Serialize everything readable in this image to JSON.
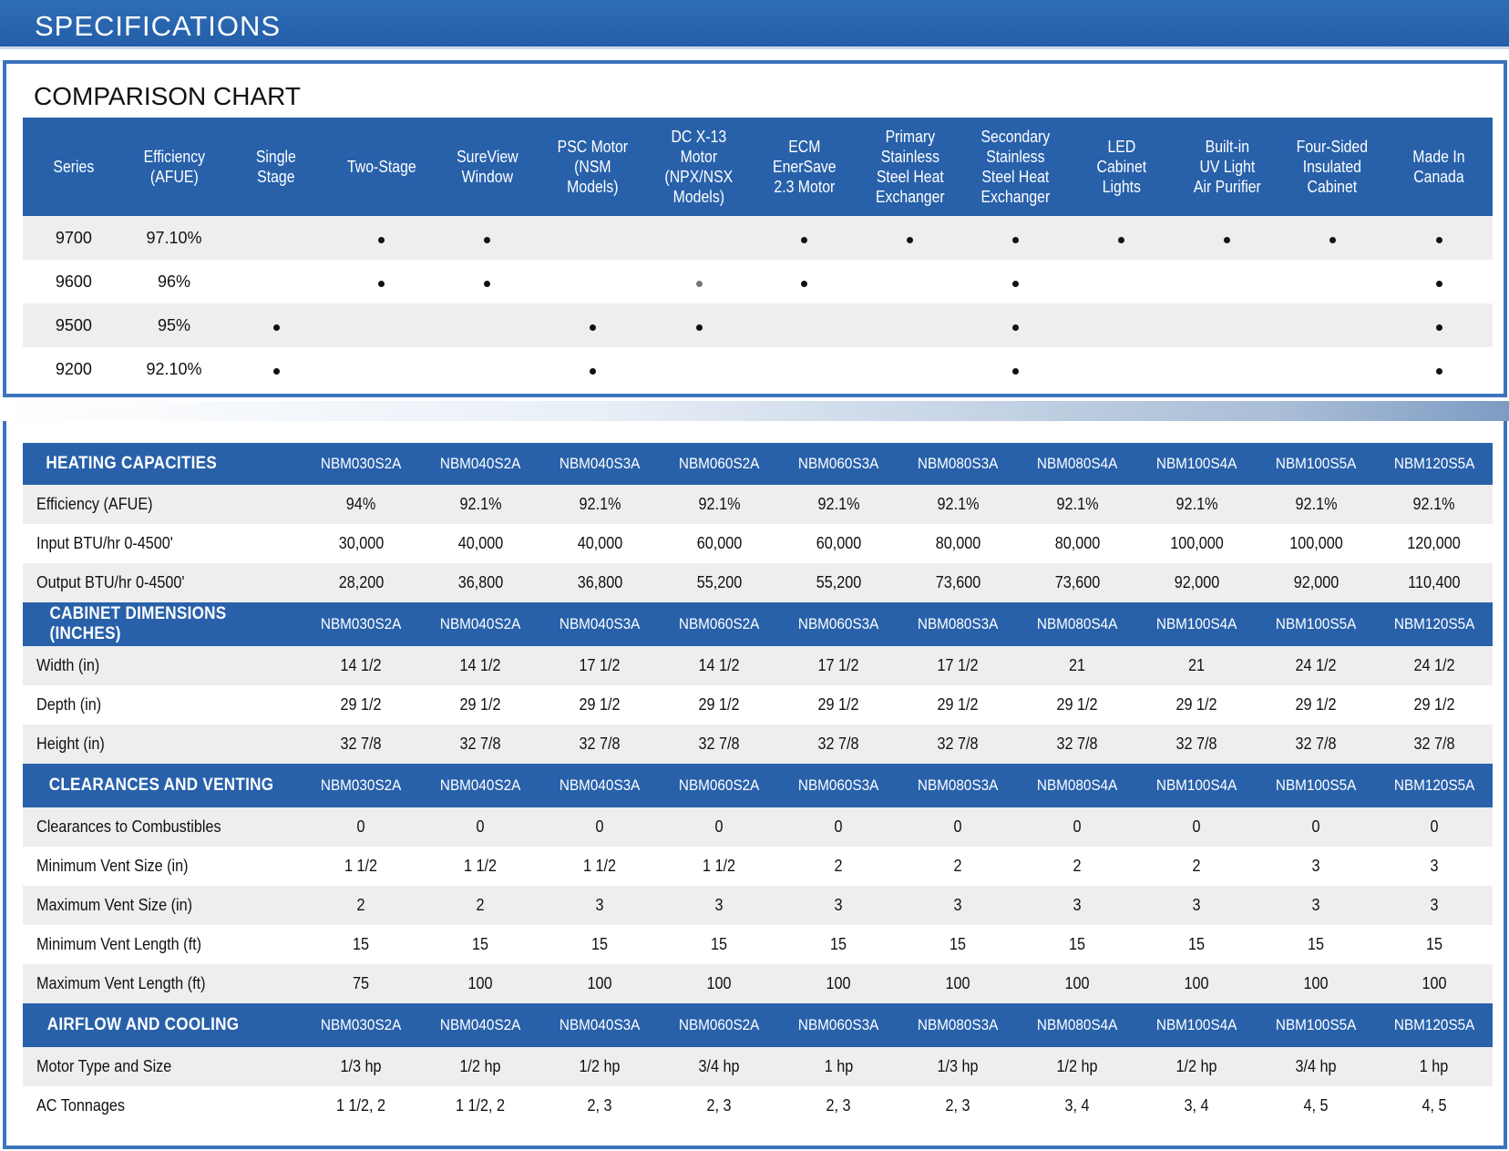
{
  "banner": {
    "title": "SPECIFICATIONS"
  },
  "comparison": {
    "heading": "COMPARISON CHART",
    "columns": [
      [
        "Series"
      ],
      [
        "Efficiency",
        "(AFUE)"
      ],
      [
        "Single",
        "Stage"
      ],
      [
        "Two-Stage"
      ],
      [
        "SureView",
        "Window"
      ],
      [
        "PSC Motor",
        "(NSM Models)"
      ],
      [
        "DC X-13",
        "Motor",
        "(NPX/NSX",
        "Models)"
      ],
      [
        "ECM",
        "EnerSave",
        "2.3 Motor"
      ],
      [
        "Primary",
        "Stainless",
        "Steel Heat",
        "Exchanger"
      ],
      [
        "Secondary",
        "Stainless",
        "Steel Heat",
        "Exchanger"
      ],
      [
        "LED",
        "Cabinet",
        "Lights"
      ],
      [
        "Built-in",
        "UV Light",
        "Air Purifier"
      ],
      [
        "Four-Sided",
        "Insulated",
        "Cabinet"
      ],
      [
        "Made In",
        "Canada"
      ]
    ],
    "rows": [
      {
        "series": "9700",
        "efficiency": "97.10%",
        "features": [
          0,
          1,
          1,
          0,
          0,
          1,
          1,
          1,
          1,
          1,
          1,
          1
        ]
      },
      {
        "series": "9600",
        "efficiency": "96%",
        "features": [
          0,
          1,
          1,
          0,
          2,
          1,
          0,
          1,
          0,
          0,
          0,
          1
        ]
      },
      {
        "series": "9500",
        "efficiency": "95%",
        "features": [
          1,
          0,
          0,
          1,
          1,
          0,
          0,
          1,
          0,
          0,
          0,
          1
        ]
      },
      {
        "series": "9200",
        "efficiency": "92.10%",
        "features": [
          1,
          0,
          0,
          1,
          0,
          0,
          0,
          1,
          0,
          0,
          0,
          1
        ]
      }
    ]
  },
  "specs": {
    "models": [
      "NBM030S2A",
      "NBM040S2A",
      "NBM040S3A",
      "NBM060S2A",
      "NBM060S3A",
      "NBM080S3A",
      "NBM080S4A",
      "NBM100S4A",
      "NBM100S5A",
      "NBM120S5A"
    ],
    "sections": [
      {
        "title": "HEATING CAPACITIES",
        "rows": [
          {
            "label": "Efficiency (AFUE)",
            "values": [
              "94%",
              "92.1%",
              "92.1%",
              "92.1%",
              "92.1%",
              "92.1%",
              "92.1%",
              "92.1%",
              "92.1%",
              "92.1%"
            ]
          },
          {
            "label": "Input BTU/hr 0-4500'",
            "values": [
              "30,000",
              "40,000",
              "40,000",
              "60,000",
              "60,000",
              "80,000",
              "80,000",
              "100,000",
              "100,000",
              "120,000"
            ]
          },
          {
            "label": "Output BTU/hr 0-4500'",
            "values": [
              "28,200",
              "36,800",
              "36,800",
              "55,200",
              "55,200",
              "73,600",
              "73,600",
              "92,000",
              "92,000",
              "110,400"
            ]
          }
        ]
      },
      {
        "title": "CABINET DIMENSIONS (INCHES)",
        "rows": [
          {
            "label": "Width (in)",
            "values": [
              "14 1/2",
              "14 1/2",
              "17 1/2",
              "14 1/2",
              "17 1/2",
              "17 1/2",
              "21",
              "21",
              "24 1/2",
              "24 1/2"
            ]
          },
          {
            "label": "Depth (in)",
            "values": [
              "29 1/2",
              "29 1/2",
              "29 1/2",
              "29 1/2",
              "29 1/2",
              "29 1/2",
              "29 1/2",
              "29 1/2",
              "29 1/2",
              "29 1/2"
            ]
          },
          {
            "label": "Height (in)",
            "values": [
              "32 7/8",
              "32 7/8",
              "32 7/8",
              "32 7/8",
              "32 7/8",
              "32 7/8",
              "32 7/8",
              "32 7/8",
              "32 7/8",
              "32 7/8"
            ]
          }
        ]
      },
      {
        "title": "CLEARANCES AND VENTING",
        "rows": [
          {
            "label": "Clearances to Combustibles",
            "values": [
              "0",
              "0",
              "0",
              "0",
              "0",
              "0",
              "0",
              "0",
              "0",
              "0"
            ]
          },
          {
            "label": "Minimum Vent Size (in)",
            "values": [
              "1 1/2",
              "1 1/2",
              "1 1/2",
              "1 1/2",
              "2",
              "2",
              "2",
              "2",
              "3",
              "3"
            ]
          },
          {
            "label": "Maximum Vent Size (in)",
            "values": [
              "2",
              "2",
              "3",
              "3",
              "3",
              "3",
              "3",
              "3",
              "3",
              "3"
            ]
          },
          {
            "label": "Minimum Vent Length (ft)",
            "values": [
              "15",
              "15",
              "15",
              "15",
              "15",
              "15",
              "15",
              "15",
              "15",
              "15"
            ]
          },
          {
            "label": "Maximum Vent Length (ft)",
            "values": [
              "75",
              "100",
              "100",
              "100",
              "100",
              "100",
              "100",
              "100",
              "100",
              "100"
            ]
          }
        ]
      },
      {
        "title": "AIRFLOW AND COOLING",
        "rows": [
          {
            "label": "Motor Type and Size",
            "values": [
              "1/3 hp",
              "1/2 hp",
              "1/2 hp",
              "3/4 hp",
              "1 hp",
              "1/3 hp",
              "1/2 hp",
              "1/2 hp",
              "3/4 hp",
              "1 hp"
            ]
          },
          {
            "label": "AC Tonnages",
            "values": [
              "1 1/2, 2",
              "1 1/2, 2",
              "2, 3",
              "2, 3",
              "2, 3",
              "2, 3",
              "3, 4",
              "3, 4",
              "4, 5",
              "4, 5"
            ]
          }
        ]
      }
    ]
  }
}
